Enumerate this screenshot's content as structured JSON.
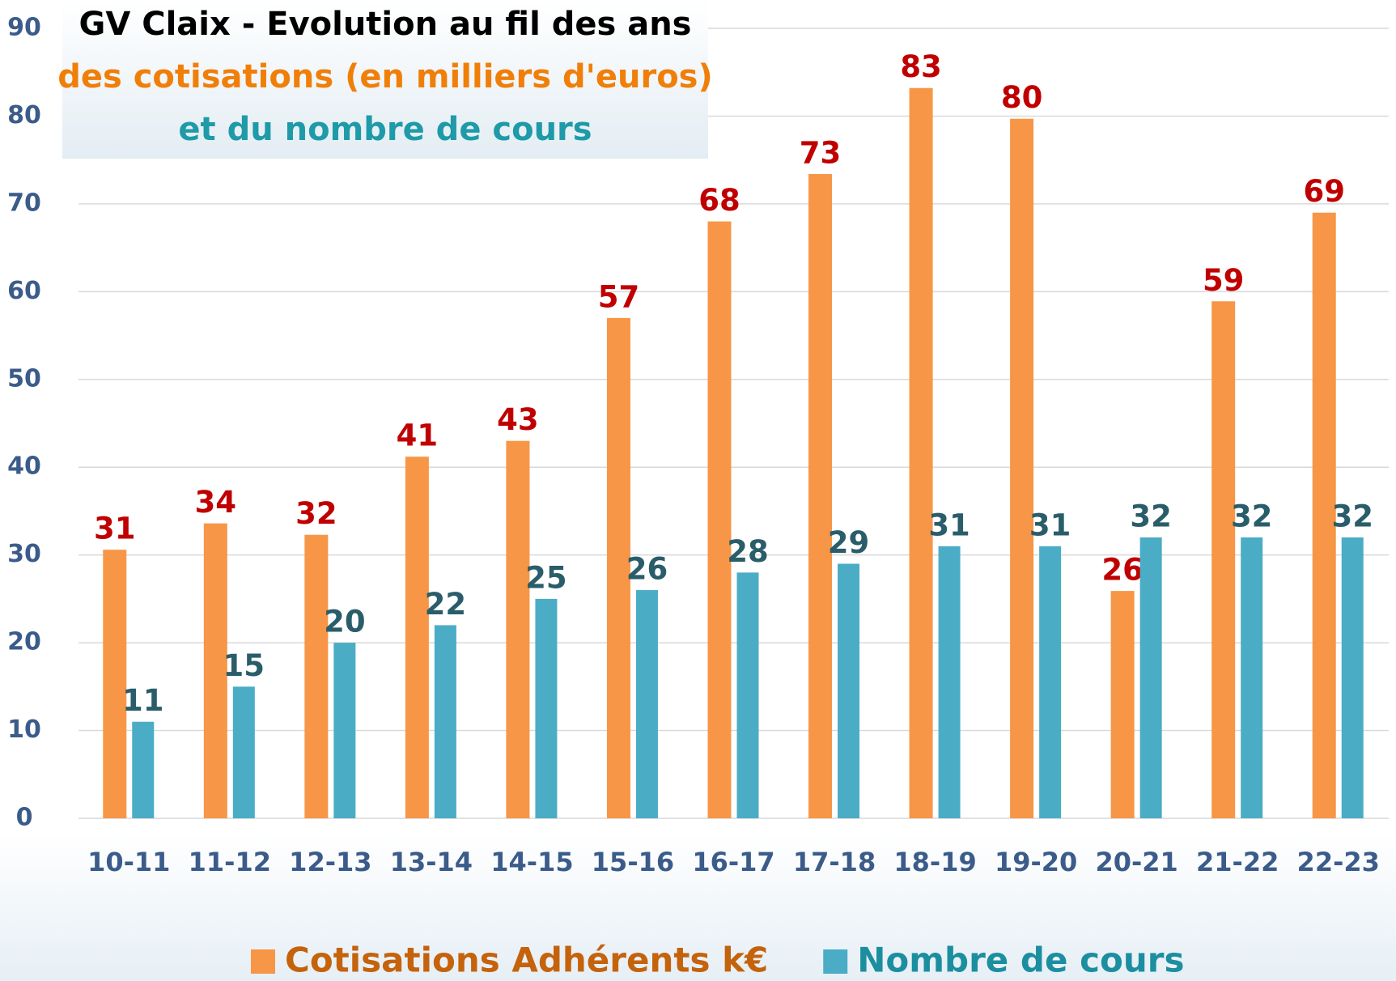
{
  "chart_data": {
    "type": "bar",
    "title_lines": [
      "GV Claix - Evolution au fil des ans",
      "des cotisations (en milliers d'euros)",
      "et du nombre de cours"
    ],
    "categories": [
      "10-11",
      "11-12",
      "12-13",
      "13-14",
      "14-15",
      "15-16",
      "16-17",
      "17-18",
      "18-19",
      "19-20",
      "20-21",
      "21-22",
      "22-23"
    ],
    "series": [
      {
        "name": "Cotisations Adhérents k€",
        "color": "#f79646",
        "values": [
          30.6,
          33.6,
          32.3,
          41.2,
          43,
          57,
          68,
          73.4,
          83.2,
          79.7,
          25.9,
          58.9,
          69
        ],
        "value_labels": [
          "31",
          "34",
          "32",
          "41",
          "43",
          "57",
          "68",
          "73",
          "83",
          "80",
          "26",
          "59",
          "69"
        ]
      },
      {
        "name": "Nombre de cours",
        "color": "#4bacc6",
        "values": [
          11,
          15,
          20,
          22,
          25,
          26,
          28,
          29,
          31,
          31,
          32,
          32,
          32
        ]
      }
    ],
    "ylim": [
      0,
      90
    ],
    "yticks": [
      0,
      10,
      20,
      30,
      40,
      50,
      60,
      70,
      80,
      90
    ],
    "grid": true,
    "legend": "bottom"
  }
}
